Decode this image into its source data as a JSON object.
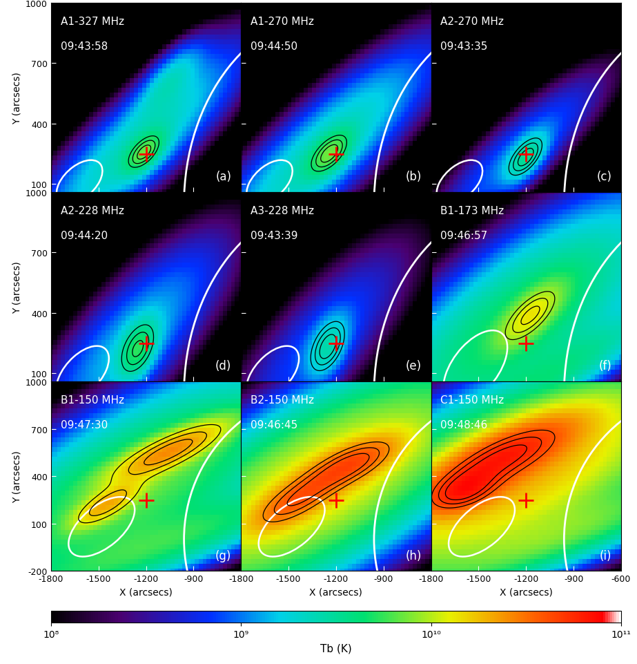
{
  "chart_data": [
    {
      "type": "heatmap",
      "annotations": [
        "A1-327 MHz",
        "09:43:58",
        "(a)"
      ],
      "xlim": [
        -1800,
        -600
      ],
      "ylim": [
        60,
        1000
      ],
      "xticks": [
        -1800,
        -1500,
        -1200,
        -900
      ],
      "yticks": [
        100,
        400,
        700,
        1000
      ],
      "tick_labels": "y",
      "ylabel": "Y (arcsecs)",
      "sources": [
        {
          "x": -1250,
          "y": 300,
          "sx": 450,
          "sy": 120,
          "angle": 35,
          "tb": 2500000000.0
        },
        {
          "x": -1210,
          "y": 255,
          "sx": 90,
          "sy": 45,
          "angle": 35,
          "tb": 5000000000.0
        },
        {
          "x": -1050,
          "y": 620,
          "sx": 150,
          "sy": 60,
          "angle": 40,
          "tb": 1500000000.0
        }
      ],
      "contour_levels": [
        4500000000.0,
        5500000000.0,
        6500000000.0
      ],
      "beam": {
        "x": -1620,
        "y": 110,
        "major": 320,
        "minor": 170,
        "angle": 30
      },
      "marker_position": [
        -1200,
        250
      ]
    },
    {
      "type": "heatmap",
      "annotations": [
        "A1-270 MHz",
        "09:44:50",
        "(b)"
      ],
      "xlim": [
        -1800,
        -600
      ],
      "ylim": [
        60,
        1000
      ],
      "xticks": [
        -1800,
        -1500,
        -1200,
        -900
      ],
      "yticks": [
        100,
        400,
        700,
        1000
      ],
      "tick_labels": false,
      "sources": [
        {
          "x": -1300,
          "y": 250,
          "sx": 500,
          "sy": 130,
          "angle": 35,
          "tb": 2500000000.0
        },
        {
          "x": -1240,
          "y": 250,
          "sx": 100,
          "sy": 50,
          "angle": 35,
          "tb": 5000000000.0
        }
      ],
      "contour_levels": [
        4500000000.0,
        5500000000.0,
        6500000000.0
      ],
      "beam": {
        "x": -1620,
        "y": 110,
        "major": 320,
        "minor": 170,
        "angle": 30
      },
      "marker_position": [
        -1200,
        250
      ]
    },
    {
      "type": "heatmap",
      "annotations": [
        "A2-270 MHz",
        "09:43:35",
        "(c)"
      ],
      "xlim": [
        -1800,
        -600
      ],
      "ylim": [
        60,
        1000
      ],
      "xticks": [
        -1800,
        -1500,
        -1200,
        -900
      ],
      "yticks": [
        100,
        400,
        700,
        1000
      ],
      "tick_labels": false,
      "sources": [
        {
          "x": -1250,
          "y": 250,
          "sx": 400,
          "sy": 100,
          "angle": 35,
          "tb": 1000000000.0
        },
        {
          "x": -1200,
          "y": 230,
          "sx": 100,
          "sy": 50,
          "angle": 40,
          "tb": 2500000000.0
        }
      ],
      "contour_levels": [
        2000000000.0,
        2500000000.0,
        3000000000.0
      ],
      "beam": {
        "x": -1620,
        "y": 110,
        "major": 320,
        "minor": 170,
        "angle": 30
      },
      "marker_position": [
        -1200,
        250
      ]
    },
    {
      "type": "heatmap",
      "annotations": [
        "A2-228 MHz",
        "09:44:20",
        "(d)"
      ],
      "xlim": [
        -1800,
        -600
      ],
      "ylim": [
        60,
        1000
      ],
      "xticks": [
        -1800,
        -1500,
        -1200,
        -900
      ],
      "yticks": [
        100,
        400,
        700,
        1000
      ],
      "tick_labels": "y",
      "ylabel": "Y (arcsecs)",
      "sources": [
        {
          "x": -1300,
          "y": 250,
          "sx": 450,
          "sy": 150,
          "angle": 40,
          "tb": 1500000000.0
        },
        {
          "x": -1250,
          "y": 220,
          "sx": 100,
          "sy": 60,
          "angle": 55,
          "tb": 4000000000.0
        }
      ],
      "contour_levels": [
        3000000000.0,
        4000000000.0,
        5000000000.0
      ],
      "beam": {
        "x": -1600,
        "y": 100,
        "major": 380,
        "minor": 200,
        "angle": 35
      },
      "marker_position": [
        -1200,
        250
      ]
    },
    {
      "type": "heatmap",
      "annotations": [
        "A3-228 MHz",
        "09:43:39",
        "(e)"
      ],
      "xlim": [
        -1800,
        -600
      ],
      "ylim": [
        60,
        1000
      ],
      "xticks": [
        -1800,
        -1500,
        -1200,
        -900
      ],
      "yticks": [
        100,
        400,
        700,
        1000
      ],
      "tick_labels": false,
      "sources": [
        {
          "x": -1300,
          "y": 250,
          "sx": 450,
          "sy": 150,
          "angle": 40,
          "tb": 800000000.0
        },
        {
          "x": -1250,
          "y": 230,
          "sx": 110,
          "sy": 65,
          "angle": 55,
          "tb": 2000000000.0
        }
      ],
      "contour_levels": [
        1600000000.0,
        2000000000.0,
        2400000000.0
      ],
      "beam": {
        "x": -1600,
        "y": 100,
        "major": 380,
        "minor": 200,
        "angle": 35
      },
      "marker_position": [
        -1200,
        250
      ]
    },
    {
      "type": "heatmap",
      "annotations": [
        "B1-173 MHz",
        "09:46:57",
        "(f)"
      ],
      "xlim": [
        -1800,
        -600
      ],
      "ylim": [
        60,
        1000
      ],
      "xticks": [
        -1800,
        -1500,
        -1200,
        -900
      ],
      "yticks": [
        100,
        400,
        700,
        1000
      ],
      "tick_labels": false,
      "sources": [
        {
          "x": -1250,
          "y": 350,
          "sx": 600,
          "sy": 200,
          "angle": 30,
          "tb": 5000000000.0
        },
        {
          "x": -1170,
          "y": 390,
          "sx": 150,
          "sy": 60,
          "angle": 35,
          "tb": 9000000000.0
        },
        {
          "x": -1100,
          "y": 50,
          "sx": 600,
          "sy": 80,
          "angle": 25,
          "tb": 3000000000.0
        }
      ],
      "contour_levels": [
        9000000000.0,
        11000000000.0,
        13000000000.0
      ],
      "beam": {
        "x": -1520,
        "y": 130,
        "major": 480,
        "minor": 260,
        "angle": 40
      },
      "marker_position": [
        -1200,
        250
      ]
    },
    {
      "type": "heatmap",
      "annotations": [
        "B1-150 MHz",
        "09:47:30",
        "(g)"
      ],
      "xlim": [
        -1800,
        -600
      ],
      "ylim": [
        -200,
        1000
      ],
      "xticks": [
        -1800,
        -1500,
        -1200,
        -900
      ],
      "yticks": [
        -200,
        100,
        400,
        700,
        1000
      ],
      "tick_labels": true,
      "xlabel": "X (arcsecs)",
      "ylabel": "Y (arcsecs)",
      "sources": [
        {
          "x": -1250,
          "y": 350,
          "sx": 700,
          "sy": 250,
          "angle": 30,
          "tb": 7000000000.0
        },
        {
          "x": -1050,
          "y": 560,
          "sx": 250,
          "sy": 60,
          "angle": 25,
          "tb": 20000000000.0
        },
        {
          "x": -1450,
          "y": 220,
          "sx": 150,
          "sy": 50,
          "angle": 30,
          "tb": 15000000000.0
        },
        {
          "x": -1000,
          "y": 0,
          "sx": 700,
          "sy": 100,
          "angle": 20,
          "tb": 4000000000.0
        }
      ],
      "contour_levels": [
        12000000000.0,
        17000000000.0,
        22000000000.0
      ],
      "beam": {
        "x": -1480,
        "y": 80,
        "major": 500,
        "minor": 260,
        "angle": 40
      },
      "marker_position": [
        -1200,
        250
      ]
    },
    {
      "type": "heatmap",
      "annotations": [
        "B2-150 MHz",
        "09:46:45",
        "(h)"
      ],
      "xlim": [
        -1800,
        -600
      ],
      "ylim": [
        -200,
        1000
      ],
      "xticks": [
        -1800,
        -1500,
        -1200,
        -900
      ],
      "yticks": [
        -200,
        100,
        400,
        700,
        1000
      ],
      "tick_labels": "x",
      "xlabel": "X (arcsecs)",
      "sources": [
        {
          "x": -1300,
          "y": 350,
          "sx": 700,
          "sy": 250,
          "angle": 30,
          "tb": 15000000000.0
        },
        {
          "x": -1100,
          "y": 480,
          "sx": 200,
          "sy": 70,
          "angle": 25,
          "tb": 30000000000.0
        },
        {
          "x": -1450,
          "y": 250,
          "sx": 200,
          "sy": 70,
          "angle": 30,
          "tb": 25000000000.0
        }
      ],
      "contour_levels": [
        25000000000.0,
        32000000000.0,
        39000000000.0
      ],
      "beam": {
        "x": -1480,
        "y": 80,
        "major": 500,
        "minor": 260,
        "angle": 40
      },
      "marker_position": [
        -1200,
        250
      ]
    },
    {
      "type": "heatmap",
      "annotations": [
        "C1-150 MHz",
        "09:48:46",
        "(i)"
      ],
      "xlim": [
        -1800,
        -600
      ],
      "ylim": [
        -200,
        1000
      ],
      "xticks": [
        -1800,
        -1500,
        -1200,
        -900,
        -600
      ],
      "yticks": [
        -200,
        100,
        400,
        700,
        1000
      ],
      "tick_labels": "x",
      "xlabel": "X (arcsecs)",
      "sources": [
        {
          "x": -1300,
          "y": 400,
          "sx": 700,
          "sy": 250,
          "angle": 25,
          "tb": 20000000000.0
        },
        {
          "x": -1350,
          "y": 520,
          "sx": 300,
          "sy": 90,
          "angle": 25,
          "tb": 50000000000.0
        },
        {
          "x": -1600,
          "y": 300,
          "sx": 150,
          "sy": 70,
          "angle": 20,
          "tb": 40000000000.0
        },
        {
          "x": -900,
          "y": 50,
          "sx": 600,
          "sy": 100,
          "angle": 20,
          "tb": 5000000000.0
        }
      ],
      "contour_levels": [
        40000000000.0,
        50000000000.0,
        60000000000.0
      ],
      "beam": {
        "x": -1480,
        "y": 80,
        "major": 500,
        "minor": 260,
        "angle": 40
      },
      "marker_position": [
        -1200,
        250
      ]
    }
  ],
  "solar_limb": {
    "center": [
      0,
      0
    ],
    "radius": 960
  },
  "colorbar": {
    "range": [
      100000000.0,
      100000000000.0
    ],
    "log": true,
    "label": "Tb (K)",
    "ticks": [
      {
        "value": 100000000.0,
        "label": "10⁸"
      },
      {
        "value": 1000000000.0,
        "label": "10⁹"
      },
      {
        "value": 10000000000.0,
        "label": "10¹⁰"
      },
      {
        "value": 100000000000.0,
        "label": "10¹¹"
      }
    ]
  }
}
